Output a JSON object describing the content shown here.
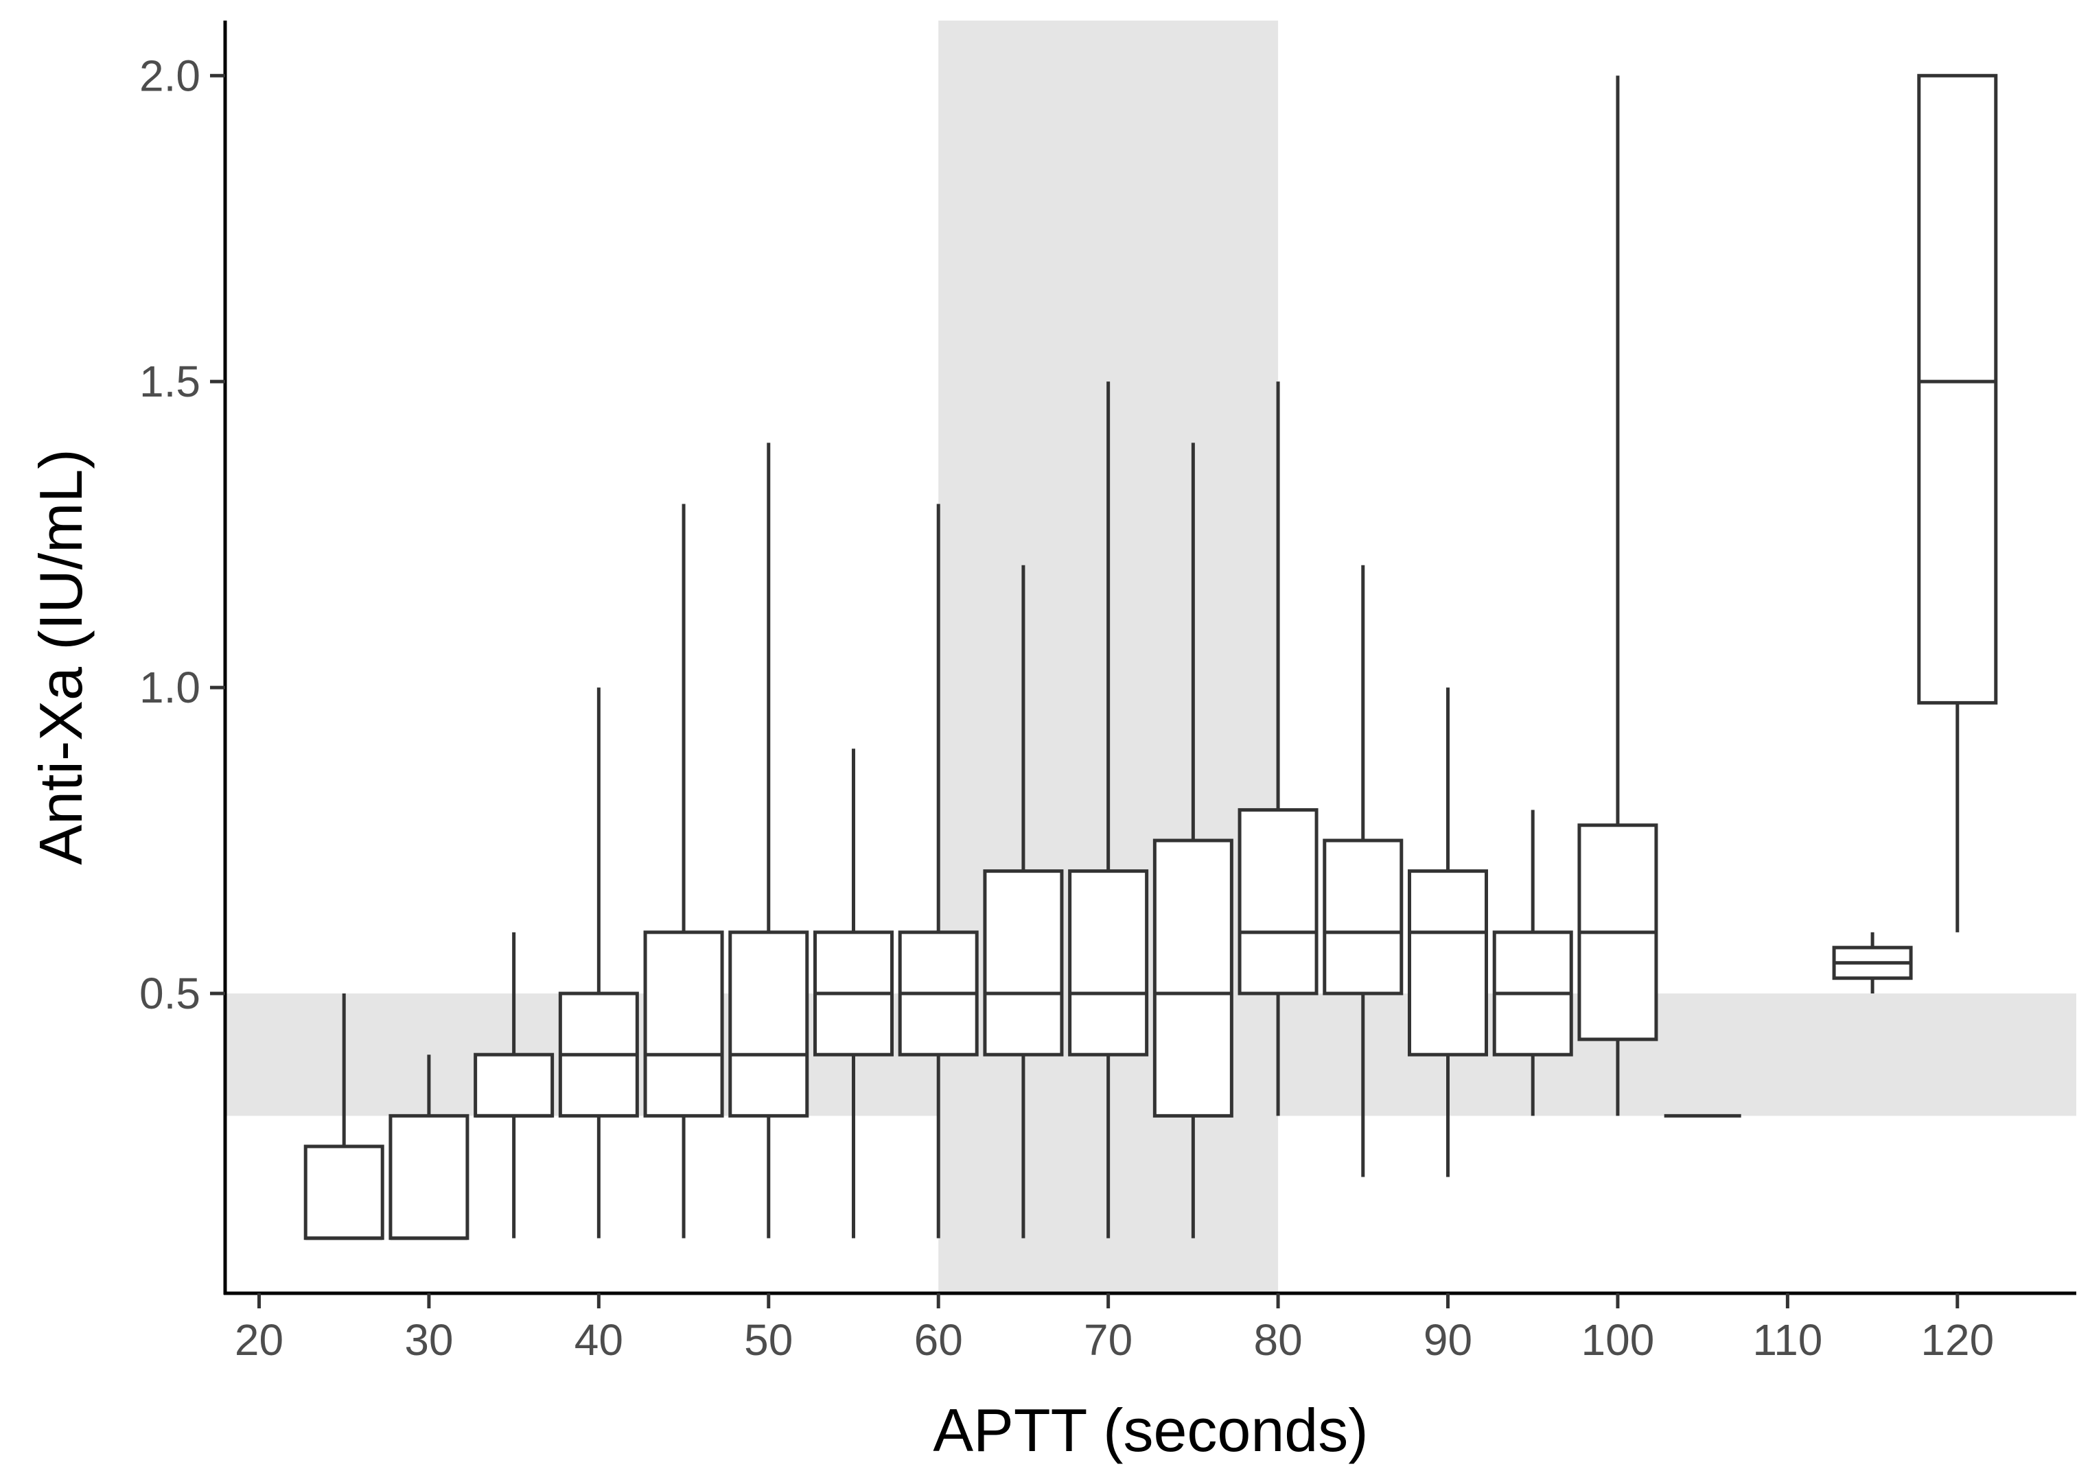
{
  "chart_data": {
    "type": "boxplot",
    "xlabel": "APTT (seconds)",
    "ylabel": "Anti-Xa (IU/mL)",
    "xlim": [
      18,
      127
    ],
    "ylim": [
      0.01,
      2.09
    ],
    "x_ticks": [
      20,
      30,
      40,
      50,
      60,
      70,
      80,
      90,
      100,
      110,
      120
    ],
    "y_ticks": [
      0.5,
      1.0,
      1.5,
      2.0
    ],
    "y_tick_labels": [
      "0.5",
      "1.0",
      "1.5",
      "2.0"
    ],
    "grid": false,
    "shaded_regions": [
      {
        "axis": "x",
        "from": 60,
        "to": 80,
        "color": "#e5e5e5"
      },
      {
        "axis": "y",
        "from": 0.3,
        "to": 0.5,
        "color": "#e5e5e5"
      }
    ],
    "box_color": "#333333",
    "boxes": [
      {
        "x": 25,
        "min": 0.1,
        "q1": 0.1,
        "median": 0.1,
        "q3": 0.25,
        "max": 0.5
      },
      {
        "x": 30,
        "min": 0.1,
        "q1": 0.1,
        "median": 0.1,
        "q3": 0.3,
        "max": 0.4
      },
      {
        "x": 35,
        "min": 0.1,
        "q1": 0.3,
        "median": 0.3,
        "q3": 0.4,
        "max": 0.6
      },
      {
        "x": 40,
        "min": 0.1,
        "q1": 0.3,
        "median": 0.4,
        "q3": 0.5,
        "max": 1.0
      },
      {
        "x": 45,
        "min": 0.1,
        "q1": 0.3,
        "median": 0.4,
        "q3": 0.6,
        "max": 1.3
      },
      {
        "x": 50,
        "min": 0.1,
        "q1": 0.3,
        "median": 0.4,
        "q3": 0.6,
        "max": 1.4
      },
      {
        "x": 55,
        "min": 0.1,
        "q1": 0.4,
        "median": 0.5,
        "q3": 0.6,
        "max": 0.9
      },
      {
        "x": 60,
        "min": 0.1,
        "q1": 0.4,
        "median": 0.5,
        "q3": 0.6,
        "max": 1.3
      },
      {
        "x": 65,
        "min": 0.1,
        "q1": 0.4,
        "median": 0.5,
        "q3": 0.7,
        "max": 1.2
      },
      {
        "x": 70,
        "min": 0.1,
        "q1": 0.4,
        "median": 0.5,
        "q3": 0.7,
        "max": 1.5
      },
      {
        "x": 75,
        "min": 0.1,
        "q1": 0.3,
        "median": 0.5,
        "q3": 0.75,
        "max": 1.4
      },
      {
        "x": 80,
        "min": 0.3,
        "q1": 0.5,
        "median": 0.6,
        "q3": 0.8,
        "max": 1.5
      },
      {
        "x": 85,
        "min": 0.2,
        "q1": 0.5,
        "median": 0.6,
        "q3": 0.75,
        "max": 1.2
      },
      {
        "x": 90,
        "min": 0.2,
        "q1": 0.4,
        "median": 0.6,
        "q3": 0.7,
        "max": 1.0
      },
      {
        "x": 95,
        "min": 0.3,
        "q1": 0.4,
        "median": 0.5,
        "q3": 0.6,
        "max": 0.8
      },
      {
        "x": 100,
        "min": 0.3,
        "q1": 0.425,
        "median": 0.6,
        "q3": 0.775,
        "max": 2.0
      },
      {
        "x": 105,
        "min": 0.3,
        "q1": 0.3,
        "median": 0.3,
        "q3": 0.3,
        "max": 0.3
      },
      {
        "x": 115,
        "min": 0.5,
        "q1": 0.525,
        "median": 0.55,
        "q3": 0.575,
        "max": 0.6
      },
      {
        "x": 120,
        "min": 0.6,
        "q1": 0.975,
        "median": 1.5,
        "q3": 2.0,
        "max": 2.0
      }
    ]
  }
}
